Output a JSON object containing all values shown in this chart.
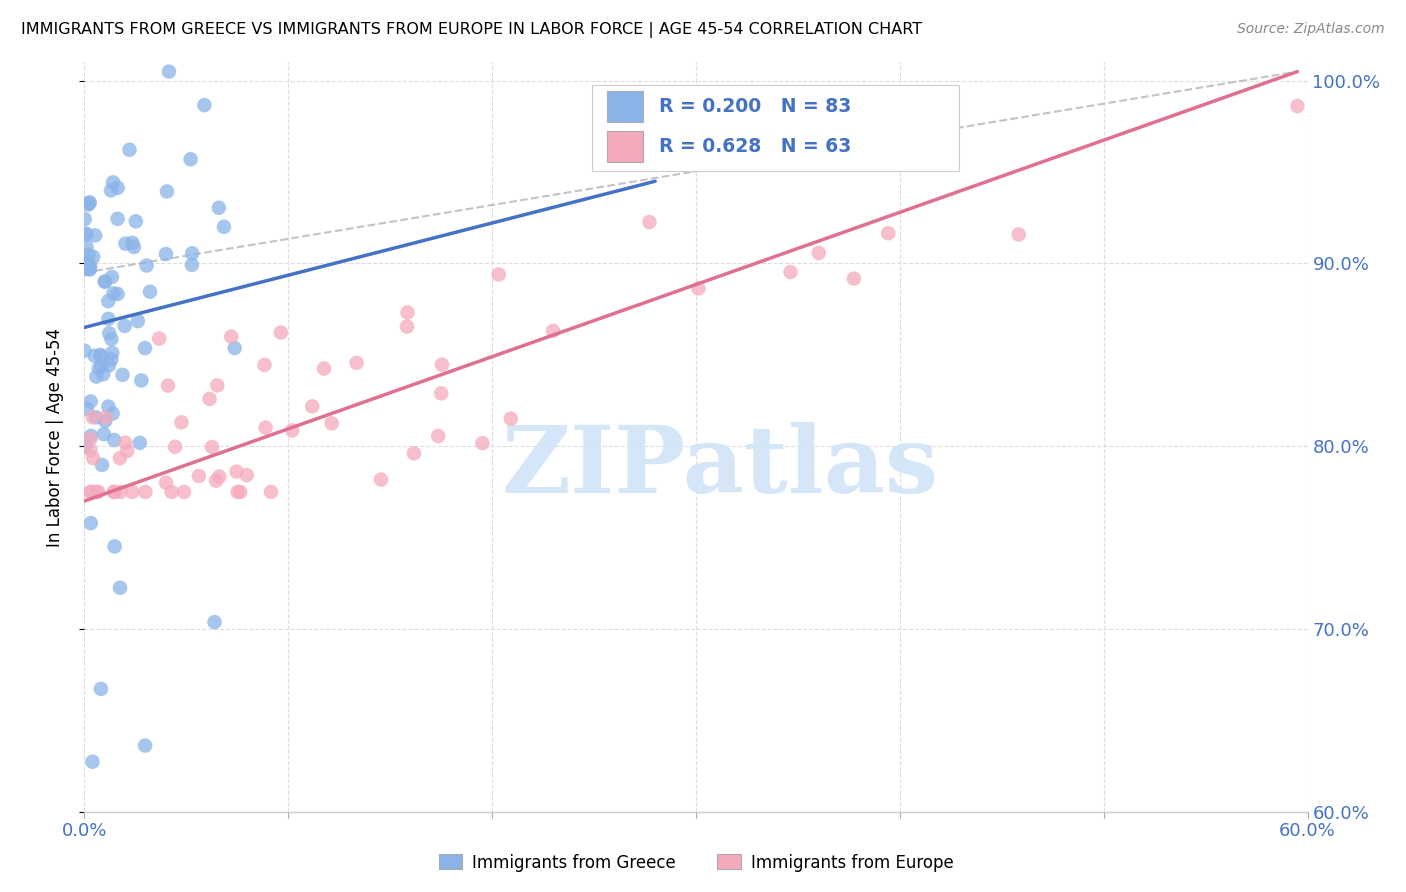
{
  "title": "IMMIGRANTS FROM GREECE VS IMMIGRANTS FROM EUROPE IN LABOR FORCE | AGE 45-54 CORRELATION CHART",
  "source": "Source: ZipAtlas.com",
  "ylabel": "In Labor Force | Age 45-54",
  "xlim": [
    0.0,
    0.6
  ],
  "ylim": [
    0.6,
    1.01
  ],
  "greece_color": "#8ab4e8",
  "europe_color": "#f5aabc",
  "greece_line_color": "#4472c4",
  "europe_line_color": "#e07090",
  "dashed_line_color": "#aaaaaa",
  "greece_R": 0.2,
  "greece_N": 83,
  "europe_R": 0.628,
  "europe_N": 63,
  "watermark_text": "ZIPatlas",
  "watermark_color": "#d0e4f7",
  "tick_color": "#4472c4",
  "grid_color": "#dddddd",
  "greece_line_x0": 0.0,
  "greece_line_x1": 0.28,
  "greece_line_y0": 0.865,
  "greece_line_y1": 0.945,
  "europe_line_x0": 0.0,
  "europe_line_x1": 0.595,
  "europe_line_y0": 0.77,
  "europe_line_y1": 1.005,
  "dashed_line_x0": 0.0,
  "dashed_line_x1": 0.595,
  "dashed_line_y0": 0.895,
  "dashed_line_y1": 1.005
}
